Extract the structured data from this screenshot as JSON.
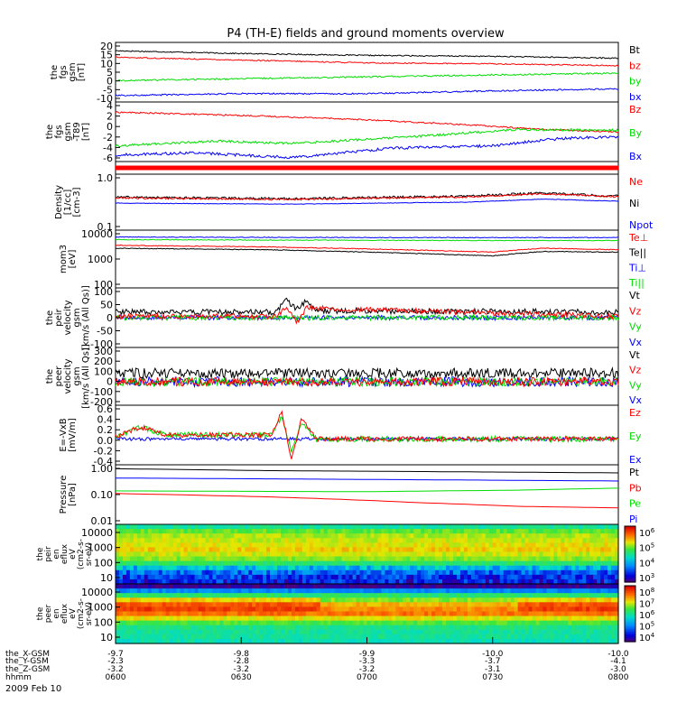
{
  "figure": {
    "title": "P4 (TH-E) fields and ground moments overview",
    "date": "2009 Feb 10"
  },
  "colors": {
    "black": "#000000",
    "red": "#ff0000",
    "green": "#00dd00",
    "blue": "#0000ff"
  },
  "chart_data": {
    "type": "line",
    "x_time_ticks": [
      "0600",
      "0630",
      "0700",
      "0730",
      "0800"
    ],
    "x_range": [
      "06:00",
      "08:00"
    ],
    "ephemeris": [
      {
        "label": "the_X-GSM",
        "values": [
          "-9.7",
          "-9.8",
          "-9.9",
          "-10.0",
          "-10.0"
        ]
      },
      {
        "label": "the_Y-GSM",
        "values": [
          "-2.3",
          "-2.8",
          "-3.3",
          "-3.7",
          "-4.1"
        ]
      },
      {
        "label": "the_Z-GSM",
        "values": [
          "-3.2",
          "-3.2",
          "-3.2",
          "-3.1",
          "-3.0"
        ]
      },
      {
        "label": "hhmm",
        "values": []
      }
    ],
    "panels": [
      {
        "ylabel": [
          "the",
          "fgs",
          "gsm",
          "[nT]"
        ],
        "scale": "linear",
        "ylim": [
          -10,
          20
        ],
        "yticks": [
          "20",
          "15",
          "10",
          "5",
          "0",
          "-5",
          "-10"
        ],
        "legend": [
          {
            "name": "Bt",
            "color": "black"
          },
          {
            "name": "bz",
            "color": "red"
          },
          {
            "name": "by",
            "color": "green"
          },
          {
            "name": "bx",
            "color": "blue"
          }
        ],
        "series": [
          {
            "name": "Bt",
            "color": "black",
            "x": [
              0,
              0.25,
              0.5,
              0.75,
              1
            ],
            "y": [
              16.5,
              15,
              14,
              13.5,
              12.5
            ],
            "noise": 0.3
          },
          {
            "name": "bz",
            "color": "red",
            "x": [
              0,
              0.25,
              0.5,
              0.75,
              1
            ],
            "y": [
              13,
              11.5,
              10,
              9.5,
              8.5
            ],
            "noise": 0.3
          },
          {
            "name": "by",
            "color": "green",
            "x": [
              0,
              0.25,
              0.5,
              0.75,
              1
            ],
            "y": [
              0.5,
              1.5,
              2.5,
              3.5,
              4.5
            ],
            "noise": 0.4
          },
          {
            "name": "bx",
            "color": "blue",
            "x": [
              0,
              0.25,
              0.5,
              0.75,
              1
            ],
            "y": [
              -7.5,
              -6.5,
              -6.5,
              -5,
              -4
            ],
            "noise": 0.4
          }
        ]
      },
      {
        "ylabel": [
          "the",
          "fgs",
          "gsm",
          "-T89",
          "[nT]"
        ],
        "scale": "linear",
        "ylim": [
          -7,
          5
        ],
        "yticks": [
          "4",
          "2",
          "0",
          "-2",
          "-4",
          "-6"
        ],
        "legend": [
          {
            "name": "Bz",
            "color": "red"
          },
          {
            "name": "By",
            "color": "green"
          },
          {
            "name": "Bx",
            "color": "blue"
          }
        ],
        "series": [
          {
            "name": "Bz",
            "color": "red",
            "x": [
              0,
              0.25,
              0.45,
              0.7,
              0.85,
              1
            ],
            "y": [
              3.2,
              2.5,
              1.8,
              0.5,
              -0.5,
              -1
            ],
            "noise": 0.15
          },
          {
            "name": "By",
            "color": "green",
            "x": [
              0,
              0.2,
              0.35,
              0.6,
              0.8,
              1
            ],
            "y": [
              -4,
              -3,
              -3.5,
              -2,
              -0.5,
              -0.7
            ],
            "noise": 0.25
          },
          {
            "name": "Bx",
            "color": "blue",
            "x": [
              0,
              0.15,
              0.35,
              0.55,
              0.75,
              0.88,
              1
            ],
            "y": [
              -6,
              -5.5,
              -6.5,
              -4.5,
              -4,
              -2.5,
              -2
            ],
            "noise": 0.3
          }
        ]
      },
      {
        "ylabel": [],
        "scale": "linear",
        "ylim": [
          0,
          1
        ],
        "yticks": [],
        "legend": [],
        "series": [
          {
            "name": "",
            "color": "red",
            "x": [
              0,
              1
            ],
            "y": [
              0.5,
              0.5
            ],
            "noise": 0,
            "width": 5
          }
        ]
      },
      {
        "ylabel": [
          "Density",
          "[1/cc]",
          "[cm-3]"
        ],
        "scale": "log",
        "ylim": [
          0.1,
          1.6
        ],
        "yticks": [
          "1.0",
          "0.1"
        ],
        "legend": [
          {
            "name": "Ne",
            "color": "red"
          },
          {
            "name": "Ni",
            "color": "black"
          },
          {
            "name": "Npot",
            "color": "blue"
          }
        ],
        "series": [
          {
            "name": "Ni",
            "color": "black",
            "x": [
              0,
              0.35,
              0.7,
              0.85,
              1
            ],
            "y": [
              0.52,
              0.48,
              0.55,
              0.65,
              0.55
            ],
            "noise": 0.04
          },
          {
            "name": "Ne",
            "color": "red",
            "x": [
              0,
              0.35,
              0.7,
              0.85,
              1
            ],
            "y": [
              0.5,
              0.46,
              0.53,
              0.62,
              0.53
            ],
            "noise": 0.03
          },
          {
            "name": "Npot",
            "color": "blue",
            "x": [
              0,
              0.35,
              0.7,
              0.85,
              1
            ],
            "y": [
              0.38,
              0.36,
              0.4,
              0.47,
              0.42
            ],
            "noise": 0.01
          }
        ]
      },
      {
        "ylabel": [
          "mom3",
          "[eV]"
        ],
        "scale": "log",
        "ylim": [
          100,
          10000
        ],
        "yticks": [
          "10000",
          "1000",
          "100"
        ],
        "legend": [
          {
            "name": "Te⊥",
            "color": "red"
          },
          {
            "name": "Te||",
            "color": "black"
          },
          {
            "name": "Ti⊥",
            "color": "blue"
          },
          {
            "name": "Ti||",
            "color": "green"
          }
        ],
        "series": [
          {
            "name": "Ti⊥",
            "color": "blue",
            "x": [
              0,
              0.5,
              1
            ],
            "y": [
              6500,
              6200,
              6200
            ],
            "noise": 0.02
          },
          {
            "name": "Ti||",
            "color": "green",
            "x": [
              0,
              0.5,
              1
            ],
            "y": [
              5200,
              4900,
              4800
            ],
            "noise": 0.02
          },
          {
            "name": "Te⊥",
            "color": "red",
            "x": [
              0,
              0.3,
              0.75,
              0.85,
              1
            ],
            "y": [
              3200,
              2800,
              1800,
              2500,
              2200
            ],
            "noise": 0.02
          },
          {
            "name": "Te||",
            "color": "black",
            "x": [
              0,
              0.3,
              0.75,
              0.85,
              1
            ],
            "y": [
              2500,
              2200,
              1300,
              1900,
              1800
            ],
            "noise": 0.02
          }
        ]
      },
      {
        "ylabel": [
          "the",
          "peir",
          "velocity",
          "gsm",
          "[km/s (All Qs)]"
        ],
        "scale": "linear",
        "ylim": [
          -100,
          100
        ],
        "yticks": [
          "100",
          "50",
          "0",
          "-50",
          "-100"
        ],
        "legend": [
          {
            "name": "Vt",
            "color": "black"
          },
          {
            "name": "Vz",
            "color": "red"
          },
          {
            "name": "Vy",
            "color": "green"
          },
          {
            "name": "Vx",
            "color": "blue"
          }
        ],
        "series": [
          {
            "name": "Vx",
            "color": "blue",
            "x": [
              0,
              1
            ],
            "y": [
              0,
              0
            ],
            "noise": 8
          },
          {
            "name": "Vy",
            "color": "green",
            "x": [
              0,
              1
            ],
            "y": [
              0,
              0
            ],
            "noise": 9
          },
          {
            "name": "Vt",
            "color": "black",
            "x": [
              0,
              0.32,
              0.34,
              0.36,
              0.38,
              0.4,
              1
            ],
            "y": [
              20,
              20,
              65,
              30,
              60,
              25,
              20
            ],
            "noise": 10
          },
          {
            "name": "Vz",
            "color": "red",
            "x": [
              0,
              0.32,
              0.34,
              0.36,
              0.38,
              1
            ],
            "y": [
              5,
              5,
              40,
              -20,
              35,
              5
            ],
            "noise": 9
          }
        ]
      },
      {
        "ylabel": [
          "the",
          "peer",
          "velocity",
          "gsm",
          "[km/s (All Qs)]"
        ],
        "scale": "linear",
        "ylim": [
          -200,
          300
        ],
        "yticks": [
          "300",
          "200",
          "100",
          "0",
          "-100",
          "-200"
        ],
        "legend": [
          {
            "name": "Vt",
            "color": "black"
          },
          {
            "name": "Vz",
            "color": "red"
          },
          {
            "name": "Vy",
            "color": "green"
          },
          {
            "name": "Vx",
            "color": "blue"
          }
        ],
        "series": [
          {
            "name": "Vx",
            "color": "blue",
            "x": [
              0,
              1
            ],
            "y": [
              0,
              0
            ],
            "noise": 45
          },
          {
            "name": "Vy",
            "color": "green",
            "x": [
              0,
              1
            ],
            "y": [
              0,
              0
            ],
            "noise": 40
          },
          {
            "name": "Vt",
            "color": "black",
            "x": [
              0,
              1
            ],
            "y": [
              80,
              80
            ],
            "noise": 45
          },
          {
            "name": "Vz",
            "color": "red",
            "x": [
              0,
              1
            ],
            "y": [
              0,
              0
            ],
            "noise": 40
          }
        ]
      },
      {
        "ylabel": [
          "E=-VxB",
          "[mV/m]"
        ],
        "scale": "linear",
        "ylim": [
          -0.6,
          0.8
        ],
        "yticks": [
          "0.6",
          "0.4",
          "0.2",
          "0.0",
          "-0.2",
          "-0.4"
        ],
        "legend": [
          {
            "name": "Ez",
            "color": "red"
          },
          {
            "name": "Ey",
            "color": "green"
          },
          {
            "name": "Ex",
            "color": "blue"
          }
        ],
        "series": [
          {
            "name": "Ex",
            "color": "blue",
            "x": [
              0,
              1
            ],
            "y": [
              0.0,
              0.0
            ],
            "noise": 0.04
          },
          {
            "name": "Ey",
            "color": "green",
            "x": [
              0,
              0.05,
              0.1,
              0.31,
              0.33,
              0.35,
              0.37,
              0.4,
              1
            ],
            "y": [
              0.05,
              0.3,
              0.1,
              0.1,
              0.55,
              -0.3,
              0.4,
              0.0,
              0.0
            ],
            "noise": 0.07
          },
          {
            "name": "Ez",
            "color": "red",
            "x": [
              0,
              0.05,
              0.1,
              0.31,
              0.33,
              0.35,
              0.37,
              0.4,
              1
            ],
            "y": [
              0.05,
              0.3,
              0.1,
              0.1,
              0.7,
              -0.5,
              0.5,
              0.0,
              0.0
            ],
            "noise": 0.06
          }
        ]
      },
      {
        "ylabel": [
          "Pressure",
          "[nPa]"
        ],
        "scale": "log",
        "ylim": [
          0.01,
          1.2
        ],
        "yticks": [
          "1.00",
          "0.10",
          "0.01"
        ],
        "legend": [
          {
            "name": "Pt",
            "color": "black"
          },
          {
            "name": "Pb",
            "color": "red"
          },
          {
            "name": "Pe",
            "color": "green"
          },
          {
            "name": "Pi",
            "color": "blue"
          }
        ],
        "series": [
          {
            "name": "Pt",
            "color": "black",
            "x": [
              0,
              0.3,
              1
            ],
            "y": [
              1.0,
              0.85,
              0.7
            ],
            "noise": 0
          },
          {
            "name": "Pi",
            "color": "blue",
            "x": [
              0,
              0.5,
              1
            ],
            "y": [
              0.45,
              0.4,
              0.35
            ],
            "noise": 0
          },
          {
            "name": "Pe",
            "color": "green",
            "x": [
              0,
              0.5,
              0.8,
              1
            ],
            "y": [
              0.15,
              0.14,
              0.16,
              0.19
            ],
            "noise": 0
          },
          {
            "name": "Pb",
            "color": "red",
            "x": [
              0,
              0.3,
              0.6,
              0.8,
              1
            ],
            "y": [
              0.12,
              0.09,
              0.055,
              0.04,
              0.035
            ],
            "noise": 0
          }
        ]
      }
    ],
    "spectrograms": [
      {
        "ylabel": [
          "the",
          "peir",
          "en",
          "eflux",
          "eV",
          "(cm2-s-",
          "sr-eV)"
        ],
        "ylim": [
          10,
          10000
        ],
        "yticks": [
          "10000",
          "1000",
          "100",
          "10"
        ],
        "colorbar_ticks": [
          "10^6",
          "10^5",
          "10^4",
          "10^3"
        ],
        "profile": [
          0.5,
          0.62,
          0.68,
          0.7,
          0.72,
          0.75,
          0.7,
          0.65,
          0.55,
          0.38,
          0.25,
          0.18,
          0.15
        ]
      },
      {
        "ylabel": [
          "the",
          "peer",
          "en",
          "eflux",
          "eV",
          "(cm2-s-",
          "sr-eV)"
        ],
        "ylim": [
          10,
          10000
        ],
        "yticks": [
          "10000",
          "1000",
          "100",
          "10"
        ],
        "colorbar_ticks": [
          "10^8",
          "10^7",
          "10^6",
          "10^5",
          "10^4"
        ],
        "profile": [
          0.05,
          0.3,
          0.55,
          0.75,
          0.88,
          0.92,
          0.85,
          0.72,
          0.6,
          0.52,
          0.5,
          0.5,
          0.47
        ]
      }
    ]
  }
}
